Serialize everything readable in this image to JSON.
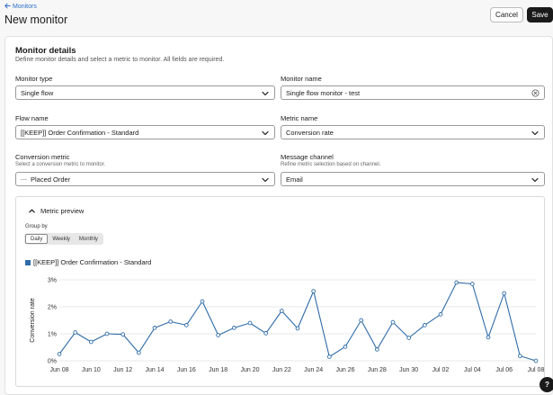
{
  "header": {
    "breadcrumb": "Monitors",
    "title": "New monitor",
    "cancel_label": "Cancel",
    "save_label": "Save"
  },
  "details": {
    "title": "Monitor details",
    "subtitle": "Define monitor details and select a metric to monitor. All fields are required.",
    "monitor_type_label": "Monitor type",
    "monitor_type_value": "Single flow",
    "monitor_name_label": "Monitor name",
    "monitor_name_value": "Single flow monitor - test",
    "flow_name_label": "Flow name",
    "flow_name_value": "[[KEEP]] Order Confirmation - Standard",
    "metric_name_label": "Metric name",
    "metric_name_value": "Conversion rate",
    "conversion_metric_label": "Conversion metric",
    "conversion_metric_help": "Select a conversion metric to monitor.",
    "conversion_metric_value": "Placed Order",
    "message_channel_label": "Message channel",
    "message_channel_help": "Refine metric selection based on channel.",
    "message_channel_value": "Email"
  },
  "preview": {
    "title": "Metric preview",
    "group_by_label": "Group by",
    "group_options": [
      "Daily",
      "Weekly",
      "Monthly"
    ],
    "group_selected": "Daily",
    "accent_color": "#2e6ba8"
  },
  "help_label": "?",
  "chart_data": {
    "type": "line",
    "series": [
      {
        "name": "[[KEEP]] Order Confirmation - Standard",
        "values": [
          0.25,
          1.05,
          0.7,
          1.0,
          0.98,
          0.3,
          1.22,
          1.45,
          1.32,
          2.2,
          0.95,
          1.22,
          1.4,
          1.02,
          1.85,
          1.2,
          2.58,
          0.15,
          0.52,
          1.5,
          0.42,
          1.43,
          0.85,
          1.32,
          1.72,
          2.9,
          2.85,
          0.87,
          2.5,
          0.18,
          0.0
        ]
      }
    ],
    "x_tick_labels": [
      "Jun 08",
      "Jun 10",
      "Jun 12",
      "Jun 14",
      "Jun 16",
      "Jun 18",
      "Jun 20",
      "Jun 22",
      "Jun 24",
      "Jun 26",
      "Jun 28",
      "Jun 30",
      "Jul 02",
      "Jul 04",
      "Jul 06",
      "Jul 08"
    ],
    "y_tick_labels": [
      "0%",
      "1%",
      "2%",
      "3%"
    ],
    "y_ticks": [
      0,
      1,
      2,
      3
    ],
    "ylabel": "Conversion rate",
    "ylim": [
      0,
      3
    ],
    "grid": true,
    "legend": "top-left"
  }
}
